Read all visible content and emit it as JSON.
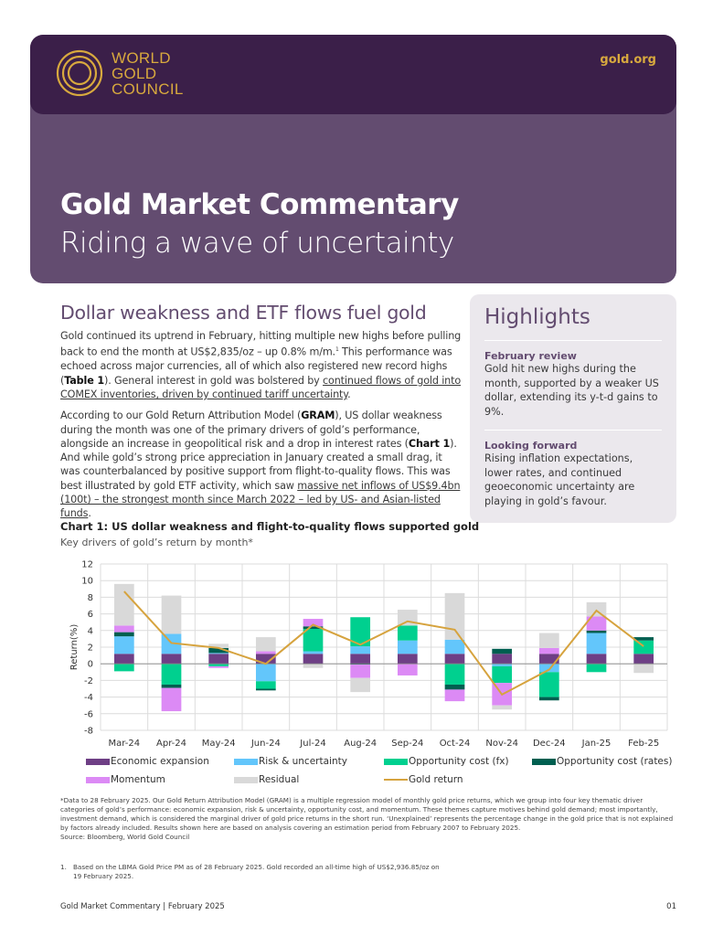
{
  "header": {
    "logo_lines": [
      "WORLD",
      "GOLD",
      "COUNCIL"
    ],
    "site": "gold.org",
    "title": "Gold Market Commentary",
    "subtitle": "Riding a wave of uncertainty"
  },
  "main": {
    "section_title": "Dollar weakness and ETF flows fuel gold",
    "para1": {
      "t1": "Gold continued its uptrend in February, hitting multiple new highs before pulling back to end the month at US$2,835/oz – up 0.8% m/m.",
      "sup": "1",
      "t2": " This performance was echoed across major currencies, all of which also registered new record highs (",
      "bold1": "Table 1",
      "t3": "). General interest in gold was bolstered by ",
      "link1": "continued flows of gold into COMEX inventories, driven by continued tariff uncertainty",
      "t4": "."
    },
    "para2": {
      "t1": "According to our Gold Return Attribution Model (",
      "bold1": "GRAM",
      "t2": "), US dollar weakness during the month was one of the primary drivers of gold’s performance, alongside an increase in geopolitical risk and a drop in interest rates (",
      "bold2": "Chart 1",
      "t3": "). And while gold’s strong price appreciation in January created a small drag, it was counterbalanced by positive support from flight-to-quality flows. This was best illustrated by gold ETF activity, which saw ",
      "link1": "massive net inflows of US$9.4bn (100t) – the strongest month since March 2022 – led by US- and Asian-listed funds",
      "t4": "."
    }
  },
  "highlights": {
    "title": "Highlights",
    "items": [
      {
        "heading": "February review",
        "text": "Gold hit new highs during the month, supported by a weaker US dollar, extending its y-t-d gains to 9%."
      },
      {
        "heading": "Looking forward",
        "text": "Rising inflation expectations, lower rates, and continued geoeconomic uncertainty are playing in gold’s favour."
      }
    ]
  },
  "chart_data": {
    "type": "bar",
    "stacked": true,
    "title": "Chart 1: US dollar weakness and flight-to-quality flows supported gold",
    "subtitle": "Key drivers of gold’s return by month*",
    "xlabel": "",
    "ylabel": "Return(%)",
    "ylim": [
      -8,
      12
    ],
    "yticks": [
      -8,
      -6,
      -4,
      -2,
      0,
      2,
      4,
      6,
      8,
      10,
      12
    ],
    "grid": true,
    "legend_position": "bottom",
    "categories": [
      "Mar-24",
      "Apr-24",
      "May-24",
      "Jun-24",
      "Jul-24",
      "Aug-24",
      "Sep-24",
      "Oct-24",
      "Nov-24",
      "Dec-24",
      "Jan-25",
      "Feb-25"
    ],
    "series": [
      {
        "name": "Economic expansion",
        "color": "#6e3f85",
        "values": [
          1.2,
          1.2,
          1.2,
          1.2,
          1.2,
          1.2,
          1.2,
          1.2,
          1.2,
          1.2,
          1.2,
          1.2
        ]
      },
      {
        "name": "Risk & uncertainty",
        "color": "#63c6fb",
        "values": [
          2.1,
          2.4,
          0.1,
          -2.1,
          0.3,
          0.9,
          1.6,
          1.7,
          -0.3,
          -1.0,
          2.5,
          0.0
        ]
      },
      {
        "name": "Opportunity cost (fx)",
        "color": "#00d08f",
        "values": [
          -0.9,
          -2.5,
          -0.3,
          -0.9,
          2.7,
          3.5,
          1.8,
          -2.5,
          -2.0,
          -3.0,
          -1.0,
          1.6
        ]
      },
      {
        "name": "Opportunity cost (rates)",
        "color": "#005f50",
        "values": [
          0.5,
          -0.4,
          0.6,
          -0.2,
          0.3,
          -0.1,
          0.0,
          -0.6,
          0.6,
          -0.4,
          0.3,
          0.4
        ]
      },
      {
        "name": "Momentum",
        "color": "#dc8af5",
        "values": [
          0.8,
          -2.8,
          -0.2,
          0.3,
          0.9,
          -1.6,
          -1.4,
          -1.4,
          -2.7,
          0.7,
          1.7,
          0.0
        ]
      },
      {
        "name": "Residual",
        "color": "#d9d9d9",
        "values": [
          5.0,
          4.6,
          0.5,
          1.7,
          -0.5,
          -1.7,
          1.9,
          5.6,
          -0.5,
          1.8,
          1.7,
          -1.1
        ]
      }
    ],
    "line": {
      "name": "Gold return",
      "color": "#d6a33e",
      "values": [
        8.7,
        2.5,
        1.9,
        0.0,
        4.7,
        2.3,
        5.1,
        4.1,
        -3.7,
        -0.7,
        6.4,
        2.1
      ]
    }
  },
  "footnote": "*Data to 28 February 2025. Our Gold Return Attribution Model (GRAM) is a multiple regression model of monthly gold price returns, which we group into four key thematic driver categories of gold’s performance: economic expansion, risk & uncertainty, opportunity cost, and momentum. These themes capture motives behind gold demand; most importantly, investment demand, which is considered the marginal driver of gold price returns in the short run. ‘Unexplained’ represents the percentage change in the gold price that is not explained by factors already included. Results shown here are based on analysis covering an estimation period from February 2007 to February 2025.",
  "source": "Source: Bloomberg, World Gold Council",
  "endnote": {
    "num": "1.",
    "text": "Based on the LBMA Gold Price PM as of 28 February 2025. Gold recorded an all-time high of US$2,936.85/oz on 19 February 2025."
  },
  "footer": {
    "left": "Gold Market Commentary | February 2025",
    "page": "01"
  }
}
